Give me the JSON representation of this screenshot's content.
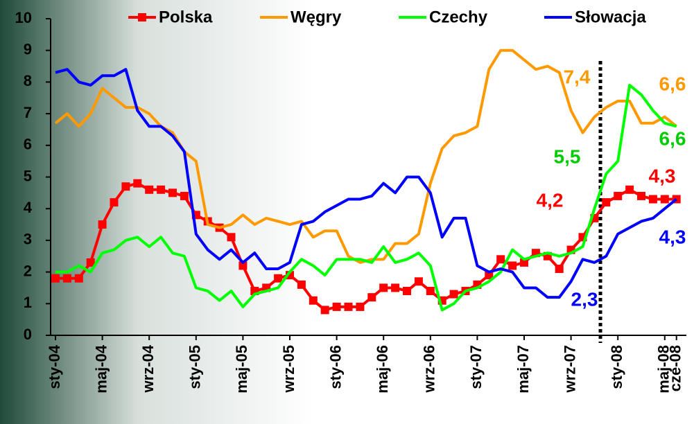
{
  "chart_data": {
    "type": "line",
    "categories": [
      "sty-04",
      null,
      null,
      null,
      "maj-04",
      null,
      null,
      null,
      "wrz-04",
      null,
      null,
      null,
      "sty-05",
      null,
      null,
      null,
      "maj-05",
      null,
      null,
      null,
      "wrz-05",
      null,
      null,
      null,
      "sty-06",
      null,
      null,
      null,
      "maj-06",
      null,
      null,
      null,
      "wrz-06",
      null,
      null,
      null,
      "sty-07",
      null,
      null,
      null,
      "maj-07",
      null,
      null,
      null,
      "wrz-07",
      null,
      null,
      null,
      "sty-08",
      null,
      null,
      null,
      "maj-08",
      "cze-08"
    ],
    "series": [
      {
        "name": "Polska",
        "color": "#ff0000",
        "marker": "square",
        "values": [
          1.8,
          1.8,
          1.8,
          2.3,
          3.5,
          4.2,
          4.7,
          4.8,
          4.6,
          4.6,
          4.5,
          4.4,
          3.8,
          3.6,
          3.4,
          3.1,
          2.2,
          1.4,
          1.5,
          1.8,
          1.9,
          1.6,
          1.1,
          0.8,
          0.9,
          0.9,
          0.9,
          1.2,
          1.5,
          1.5,
          1.4,
          1.7,
          1.4,
          1.1,
          1.3,
          1.4,
          1.6,
          1.9,
          2.4,
          2.2,
          2.3,
          2.6,
          2.5,
          2.1,
          2.7,
          3.1,
          3.7,
          4.2,
          4.4,
          4.6,
          4.4,
          4.3,
          4.3,
          4.3
        ]
      },
      {
        "name": "Węgry",
        "color": "#ff9900",
        "values": [
          6.7,
          7.0,
          6.6,
          7.0,
          7.8,
          7.5,
          7.2,
          7.2,
          7.0,
          6.6,
          6.4,
          5.8,
          5.5,
          3.5,
          3.4,
          3.5,
          3.8,
          3.5,
          3.7,
          3.6,
          3.5,
          3.6,
          3.1,
          3.3,
          3.3,
          2.5,
          2.3,
          2.4,
          2.4,
          2.9,
          2.9,
          3.2,
          4.8,
          5.9,
          6.3,
          6.4,
          6.6,
          8.4,
          9.0,
          9.0,
          8.7,
          8.4,
          8.5,
          8.3,
          7.1,
          6.4,
          6.9,
          7.2,
          7.4,
          7.4,
          6.7,
          6.7,
          6.9,
          6.6
        ]
      },
      {
        "name": "Czechy",
        "color": "#00ff00",
        "values": [
          2.0,
          2.0,
          2.2,
          2.0,
          2.6,
          2.7,
          3.0,
          3.1,
          2.8,
          3.1,
          2.6,
          2.5,
          1.5,
          1.4,
          1.1,
          1.4,
          0.9,
          1.3,
          1.4,
          1.5,
          2.0,
          2.4,
          2.2,
          1.9,
          2.4,
          2.4,
          2.4,
          2.3,
          2.8,
          2.3,
          2.4,
          2.6,
          2.2,
          0.8,
          1.0,
          1.4,
          1.5,
          1.7,
          2.0,
          2.7,
          2.4,
          2.5,
          2.6,
          2.5,
          2.6,
          2.8,
          4.0,
          5.1,
          5.5,
          7.9,
          7.6,
          7.1,
          6.7,
          6.6
        ]
      },
      {
        "name": "Słowacja",
        "color": "#0000ff",
        "values": [
          8.3,
          8.4,
          8.0,
          7.9,
          8.2,
          8.2,
          8.4,
          7.1,
          6.6,
          6.6,
          6.3,
          5.8,
          3.2,
          2.7,
          2.4,
          2.7,
          2.3,
          2.6,
          2.1,
          2.1,
          2.3,
          3.5,
          3.6,
          3.9,
          4.1,
          4.3,
          4.3,
          4.4,
          4.8,
          4.5,
          5.0,
          5.0,
          4.5,
          3.1,
          3.7,
          3.7,
          2.2,
          2.0,
          2.1,
          2.0,
          1.5,
          1.5,
          1.2,
          1.2,
          1.7,
          2.4,
          2.3,
          2.5,
          3.2,
          3.4,
          3.6,
          3.7,
          4.0,
          4.3
        ]
      }
    ],
    "annotations": [
      {
        "text": "7,4",
        "color": "#ff9900"
      },
      {
        "text": "6,6",
        "color": "#ff9900"
      },
      {
        "text": "6,6",
        "color": "#00cc00"
      },
      {
        "text": "5,5",
        "color": "#00cc00"
      },
      {
        "text": "4,2",
        "color": "#ff0000"
      },
      {
        "text": "4,3",
        "color": "#ff0000"
      },
      {
        "text": "4,3",
        "color": "#0000ff"
      },
      {
        "text": "2,3",
        "color": "#0000ff"
      }
    ],
    "ylim": [
      0,
      10
    ],
    "yticks": [
      0,
      1,
      2,
      3,
      4,
      5,
      6,
      7,
      8,
      9,
      10
    ],
    "legend": "top"
  }
}
